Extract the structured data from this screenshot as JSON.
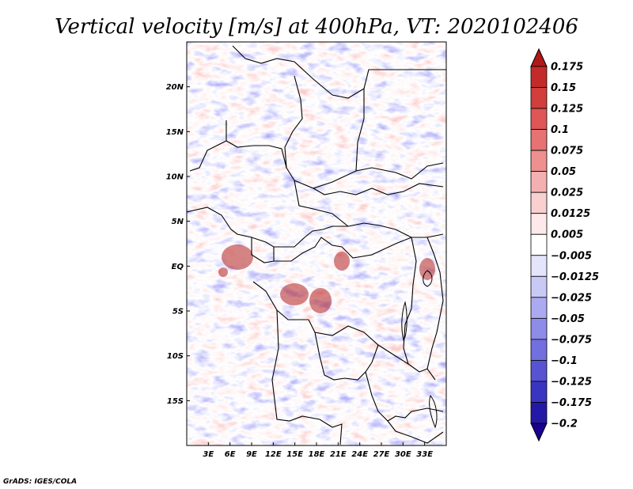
{
  "title": "Vertical velocity [m/s] at 400hPa, VT: 2020102406",
  "credit": "GrADS: IGES/COLA",
  "map": {
    "lon_range": [
      0,
      36
    ],
    "lat_range": [
      -20,
      25
    ],
    "lat_ticks": [
      {
        "value": 20,
        "label": "20N"
      },
      {
        "value": 15,
        "label": "15N"
      },
      {
        "value": 10,
        "label": "10N"
      },
      {
        "value": 5,
        "label": "5N"
      },
      {
        "value": 0,
        "label": "EQ"
      },
      {
        "value": -5,
        "label": "5S"
      },
      {
        "value": -10,
        "label": "10S"
      },
      {
        "value": -15,
        "label": "15S"
      }
    ],
    "lon_ticks": [
      {
        "value": 3,
        "label": "3E"
      },
      {
        "value": 6,
        "label": "6E"
      },
      {
        "value": 9,
        "label": "9E"
      },
      {
        "value": 12,
        "label": "12E"
      },
      {
        "value": 15,
        "label": "15E"
      },
      {
        "value": 18,
        "label": "18E"
      },
      {
        "value": 21,
        "label": "21E"
      },
      {
        "value": 24,
        "label": "24E"
      },
      {
        "value": 27,
        "label": "27E"
      },
      {
        "value": 30,
        "label": "30E"
      },
      {
        "value": 33,
        "label": "33E"
      }
    ]
  },
  "colorbar": {
    "levels": [
      "0.175",
      "0.15",
      "0.125",
      "0.1",
      "0.075",
      "0.05",
      "0.025",
      "0.0125",
      "0.005",
      "−0.005",
      "−0.0125",
      "−0.025",
      "−0.05",
      "−0.075",
      "−0.1",
      "−0.125",
      "−0.175",
      "−0.2"
    ],
    "colors": [
      "#b01818",
      "#c42a2a",
      "#d23d3d",
      "#de5656",
      "#e67272",
      "#ee9090",
      "#f4b0b0",
      "#f9cfcf",
      "#fde9e9",
      "#ffffff",
      "#e4e4fb",
      "#c9c9f6",
      "#abaaf1",
      "#8e8ce9",
      "#726fde",
      "#5753d2",
      "#3a35c0",
      "#2418a6",
      "#1a0090"
    ]
  }
}
